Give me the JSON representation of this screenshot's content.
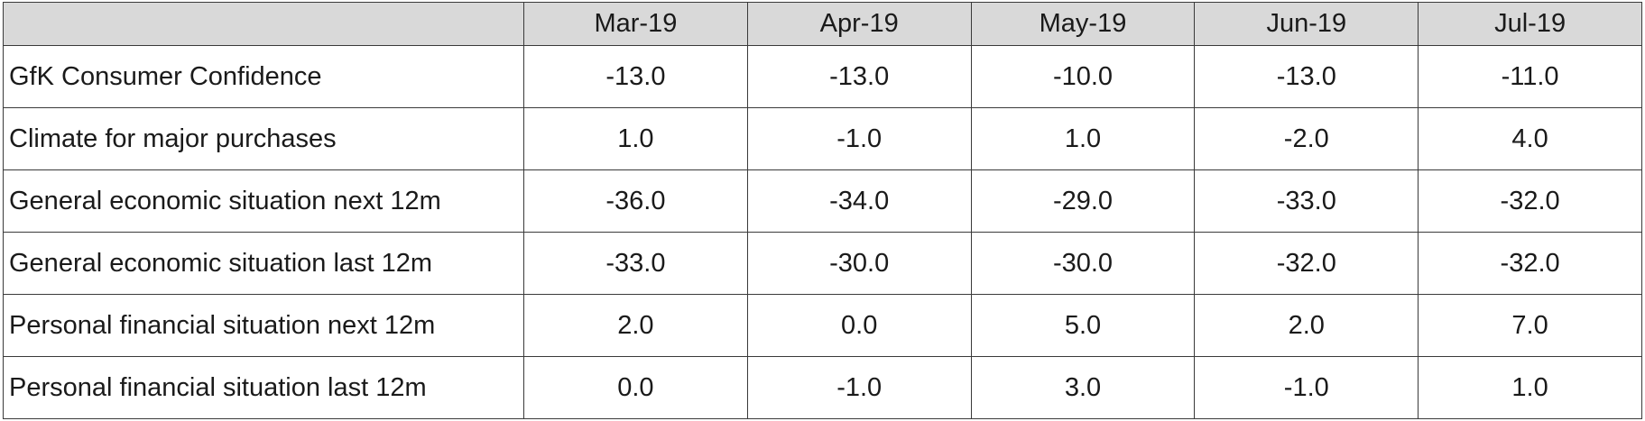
{
  "table": {
    "header": [
      "Mar-19",
      "Apr-19",
      "May-19",
      "Jun-19",
      "Jul-19"
    ],
    "rows": [
      {
        "label": "GfK Consumer Confidence",
        "values": [
          "-13.0",
          "-13.0",
          "-10.0",
          "-13.0",
          "-11.0"
        ]
      },
      {
        "label": "Climate for major purchases",
        "values": [
          "1.0",
          "-1.0",
          "1.0",
          "-2.0",
          "4.0"
        ]
      },
      {
        "label": "General economic situation next 12m",
        "values": [
          "-36.0",
          "-34.0",
          "-29.0",
          "-33.0",
          "-32.0"
        ]
      },
      {
        "label": "General economic situation last 12m",
        "values": [
          "-33.0",
          "-30.0",
          "-30.0",
          "-32.0",
          "-32.0"
        ]
      },
      {
        "label": "Personal financial situation next 12m",
        "values": [
          "2.0",
          "0.0",
          "5.0",
          "2.0",
          "7.0"
        ]
      },
      {
        "label": "Personal financial situation last 12m",
        "values": [
          "0.0",
          "-1.0",
          "3.0",
          "-1.0",
          "1.0"
        ]
      }
    ]
  }
}
